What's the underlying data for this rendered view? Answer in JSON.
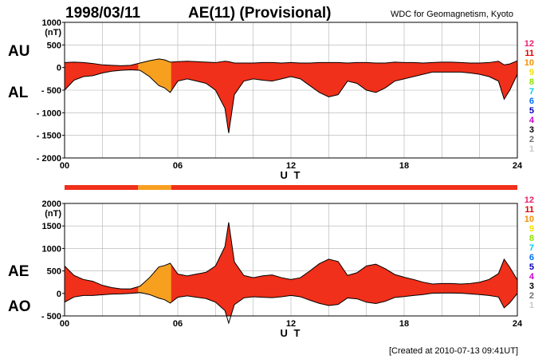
{
  "header": {
    "date": "1998/03/11",
    "title": "AE(11) (Provisional)",
    "source": "WDC for Geomagnetism, Kyoto"
  },
  "footer": {
    "created": "[Created at 2010-07-13 09:41UT]"
  },
  "colors": {
    "active": "#f0301a",
    "reduced": "#f7a020",
    "grid": "#b0b0b0",
    "curve": "#000000"
  },
  "station_legend": [
    {
      "label": "12",
      "color": "#e8206f"
    },
    {
      "label": "11",
      "color": "#e00000"
    },
    {
      "label": "10",
      "color": "#f49000"
    },
    {
      "label": "9",
      "color": "#f2e000"
    },
    {
      "label": "8",
      "color": "#8ee000"
    },
    {
      "label": "7",
      "color": "#00d0e8"
    },
    {
      "label": "6",
      "color": "#0070ff"
    },
    {
      "label": "5",
      "color": "#0000c0"
    },
    {
      "label": "4",
      "color": "#d000d0"
    },
    {
      "label": "3",
      "color": "#000000"
    },
    {
      "label": "2",
      "color": "#707070"
    },
    {
      "label": "1",
      "color": "#c8c8c8"
    }
  ],
  "station_bar": [
    {
      "from": 0,
      "to": 3.9,
      "stations": 11
    },
    {
      "from": 3.9,
      "to": 5.65,
      "stations": 10
    },
    {
      "from": 5.65,
      "to": 24,
      "stations": 11
    }
  ],
  "chart_data": [
    {
      "type": "area",
      "xlabel": "U T",
      "side_labels": [
        "AU",
        "AL"
      ],
      "ylabel_unit": "(nT)",
      "xlim": [
        0,
        24
      ],
      "ylim": [
        -2000,
        1000
      ],
      "ytick_labels": [
        "1000",
        "500",
        "0",
        "- 500",
        "- 1000",
        "- 1500",
        "- 2000"
      ],
      "xtick_labels": [
        "00",
        "06",
        "12",
        "18",
        "24"
      ],
      "grid": true,
      "series": [
        {
          "name": "AU",
          "x": [
            0,
            0.5,
            1,
            1.5,
            2,
            2.5,
            3,
            3.5,
            4,
            4.5,
            5,
            5.3,
            5.6,
            6,
            6.5,
            7,
            7.5,
            8,
            8.5,
            8.7,
            9,
            9.5,
            10,
            10.5,
            11,
            11.5,
            12,
            12.5,
            13,
            13.5,
            14,
            14.5,
            15,
            15.5,
            16,
            16.5,
            17,
            17.5,
            18,
            18.5,
            19,
            19.5,
            20,
            20.5,
            21,
            21.5,
            22,
            22.5,
            23,
            23.3,
            23.6,
            24
          ],
          "values": [
            110,
            120,
            110,
            90,
            60,
            50,
            40,
            50,
            100,
            150,
            190,
            170,
            120,
            130,
            140,
            130,
            120,
            110,
            140,
            130,
            100,
            100,
            100,
            110,
            110,
            100,
            110,
            100,
            100,
            110,
            110,
            110,
            100,
            110,
            110,
            100,
            100,
            120,
            110,
            110,
            100,
            110,
            120,
            120,
            110,
            100,
            100,
            110,
            140,
            60,
            80,
            150
          ]
        },
        {
          "name": "AL",
          "x": [
            0,
            0.5,
            1,
            1.5,
            2,
            2.5,
            3,
            3.5,
            4,
            4.5,
            5,
            5.3,
            5.6,
            6,
            6.5,
            7,
            7.5,
            8,
            8.5,
            8.7,
            9,
            9.5,
            10,
            10.5,
            11,
            11.5,
            12,
            12.5,
            13,
            13.5,
            14,
            14.5,
            15,
            15.5,
            16,
            16.5,
            17,
            17.5,
            18,
            18.5,
            19,
            19.5,
            20,
            20.5,
            21,
            21.5,
            22,
            22.5,
            23,
            23.3,
            23.6,
            24
          ],
          "values": [
            -500,
            -280,
            -200,
            -180,
            -120,
            -80,
            -60,
            -50,
            -60,
            -200,
            -400,
            -450,
            -550,
            -300,
            -250,
            -300,
            -350,
            -500,
            -900,
            -1450,
            -600,
            -300,
            -250,
            -280,
            -300,
            -250,
            -200,
            -250,
            -400,
            -550,
            -650,
            -600,
            -300,
            -350,
            -500,
            -550,
            -450,
            -300,
            -250,
            -200,
            -150,
            -100,
            -100,
            -100,
            -100,
            -120,
            -150,
            -200,
            -300,
            -700,
            -500,
            -150
          ]
        }
      ]
    },
    {
      "type": "area",
      "xlabel": "U T",
      "side_labels": [
        "AE",
        "AO"
      ],
      "ylabel_unit": "(nT)",
      "xlim": [
        0,
        24
      ],
      "ylim": [
        -500,
        2000
      ],
      "ytick_labels": [
        "2000",
        "1500",
        "1000",
        "500",
        "0",
        "- 500"
      ],
      "xtick_labels": [
        "00",
        "06",
        "12",
        "18",
        "24"
      ],
      "grid": true,
      "series": [
        {
          "name": "AE",
          "x": [
            0,
            0.5,
            1,
            1.5,
            2,
            2.5,
            3,
            3.5,
            4,
            4.5,
            5,
            5.3,
            5.6,
            6,
            6.5,
            7,
            7.5,
            8,
            8.5,
            8.7,
            9,
            9.5,
            10,
            10.5,
            11,
            11.5,
            12,
            12.5,
            13,
            13.5,
            14,
            14.5,
            15,
            15.5,
            16,
            16.5,
            17,
            17.5,
            18,
            18.5,
            19,
            19.5,
            20,
            20.5,
            21,
            21.5,
            22,
            22.5,
            23,
            23.3,
            23.6,
            24
          ],
          "values": [
            610,
            400,
            310,
            270,
            180,
            130,
            100,
            100,
            160,
            350,
            590,
            620,
            670,
            430,
            390,
            430,
            470,
            610,
            1040,
            1580,
            700,
            400,
            350,
            390,
            410,
            350,
            310,
            350,
            500,
            660,
            760,
            710,
            400,
            460,
            610,
            650,
            550,
            420,
            360,
            310,
            250,
            210,
            220,
            220,
            210,
            220,
            250,
            310,
            440,
            760,
            580,
            300
          ]
        },
        {
          "name": "AO",
          "x": [
            0,
            0.5,
            1,
            1.5,
            2,
            2.5,
            3,
            3.5,
            4,
            4.5,
            5,
            5.3,
            5.6,
            6,
            6.5,
            7,
            7.5,
            8,
            8.5,
            8.7,
            9,
            9.5,
            10,
            10.5,
            11,
            11.5,
            12,
            12.5,
            13,
            13.5,
            14,
            14.5,
            15,
            15.5,
            16,
            16.5,
            17,
            17.5,
            18,
            18.5,
            19,
            19.5,
            20,
            20.5,
            21,
            21.5,
            22,
            22.5,
            23,
            23.3,
            23.6,
            24
          ],
          "values": [
            -195,
            -80,
            -45,
            -45,
            -30,
            -15,
            -10,
            0,
            20,
            -25,
            -105,
            -140,
            -215,
            -85,
            -55,
            -85,
            -115,
            -195,
            -380,
            -660,
            -250,
            -100,
            -75,
            -85,
            -95,
            -75,
            -45,
            -75,
            -150,
            -220,
            -270,
            -245,
            -100,
            -120,
            -195,
            -225,
            -175,
            -90,
            -70,
            -45,
            -25,
            5,
            10,
            10,
            5,
            -10,
            -25,
            -45,
            -80,
            -320,
            -210,
            0
          ]
        }
      ]
    }
  ]
}
